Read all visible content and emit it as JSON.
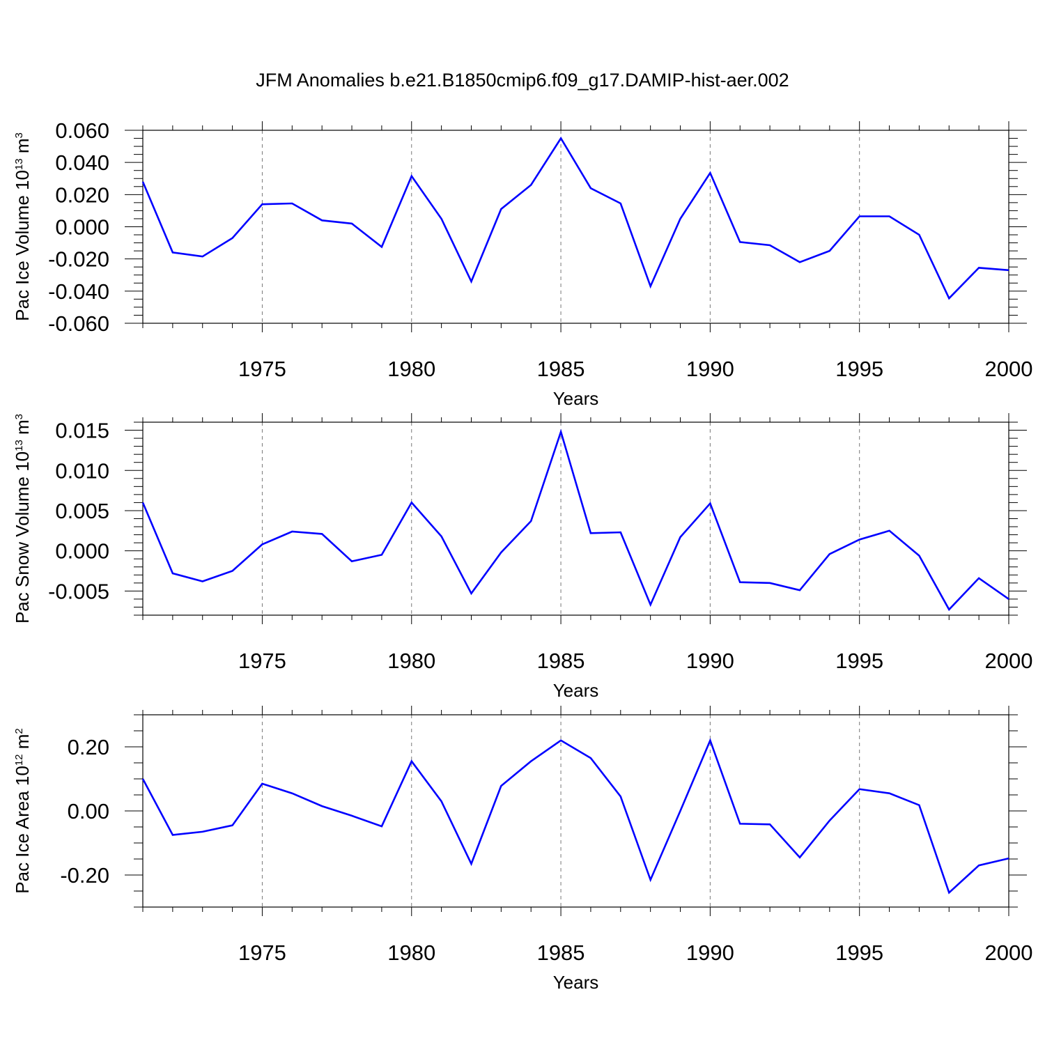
{
  "figure": {
    "title": "JFM Anomalies b.e21.B1850cmip6.f09_g17.DAMIP-hist-aer.002"
  },
  "chart_data": [
    {
      "type": "line",
      "xlabel": "Years",
      "ylabel": {
        "text": "Pac Ice Volume 10",
        "exp1": "13",
        "mid": " m",
        "exp2": "3"
      },
      "xlim": [
        1971,
        2000
      ],
      "ylim": [
        -0.06,
        0.06
      ],
      "xticks": [
        1975,
        1980,
        1985,
        1990,
        1995,
        2000
      ],
      "yticks": [
        -0.06,
        -0.04,
        -0.02,
        0.0,
        0.02,
        0.04,
        0.06
      ],
      "ytick_labels": [
        "-0.060",
        "-0.040",
        "-0.020",
        "0.000",
        "0.020",
        "0.040",
        "0.060"
      ],
      "yminor_step": 0.005,
      "grid": "vertical dashed at major x ticks",
      "line_color": "#0000ff",
      "series": [
        {
          "x": [
            1971,
            1972,
            1973,
            1974,
            1975,
            1976,
            1977,
            1978,
            1979,
            1980,
            1981,
            1982,
            1983,
            1984,
            1985,
            1986,
            1987,
            1988,
            1989,
            1990,
            1991,
            1992,
            1993,
            1994,
            1995,
            1996,
            1997,
            1998,
            1999,
            2000
          ],
          "values": [
            0.028,
            -0.016,
            -0.0185,
            -0.007,
            0.014,
            0.0145,
            0.004,
            0.002,
            -0.0125,
            0.0315,
            0.005,
            -0.034,
            0.011,
            0.026,
            0.055,
            0.024,
            0.0145,
            -0.037,
            0.005,
            0.0335,
            -0.0095,
            -0.0115,
            -0.022,
            -0.015,
            0.0065,
            0.0065,
            -0.005,
            -0.0445,
            -0.0255,
            -0.027
          ]
        }
      ]
    },
    {
      "type": "line",
      "xlabel": "Years",
      "ylabel": {
        "text": "Pac Snow Volume 10",
        "exp1": "13",
        "mid": " m",
        "exp2": "3"
      },
      "xlim": [
        1971,
        2000
      ],
      "ylim": [
        -0.008,
        0.016
      ],
      "xticks": [
        1975,
        1980,
        1985,
        1990,
        1995,
        2000
      ],
      "yticks": [
        -0.005,
        0.0,
        0.005,
        0.01,
        0.015
      ],
      "ytick_labels": [
        "-0.005",
        "0.000",
        "0.005",
        "0.010",
        "0.015"
      ],
      "yminor_step": 0.001,
      "grid": "vertical dashed at major x ticks",
      "line_color": "#0000ff",
      "series": [
        {
          "x": [
            1971,
            1972,
            1973,
            1974,
            1975,
            1976,
            1977,
            1978,
            1979,
            1980,
            1981,
            1982,
            1983,
            1984,
            1985,
            1986,
            1987,
            1988,
            1989,
            1990,
            1991,
            1992,
            1993,
            1994,
            1995,
            1996,
            1997,
            1998,
            1999,
            2000
          ],
          "values": [
            0.006,
            -0.0028,
            -0.0038,
            -0.0025,
            0.0008,
            0.0024,
            0.0021,
            -0.0013,
            -0.0005,
            0.006,
            0.0018,
            -0.0053,
            -0.0002,
            0.0037,
            0.0148,
            0.0022,
            0.0023,
            -0.0067,
            0.0017,
            0.0059,
            -0.0039,
            -0.004,
            -0.0049,
            -0.0004,
            0.0014,
            0.0025,
            -0.0006,
            -0.0073,
            -0.0034,
            -0.006
          ]
        }
      ]
    },
    {
      "type": "line",
      "xlabel": "Years",
      "ylabel": {
        "text": "Pac Ice Area 10",
        "exp1": "12",
        "mid": " m",
        "exp2": "2"
      },
      "xlim": [
        1971,
        2000
      ],
      "ylim": [
        -0.3,
        0.3
      ],
      "xticks": [
        1975,
        1980,
        1985,
        1990,
        1995,
        2000
      ],
      "yticks": [
        -0.2,
        0.0,
        0.2
      ],
      "ytick_labels": [
        "-0.20",
        "0.00",
        "0.20"
      ],
      "yminor_step": 0.05,
      "grid": "vertical dashed at major x ticks",
      "line_color": "#0000ff",
      "series": [
        {
          "x": [
            1971,
            1972,
            1973,
            1974,
            1975,
            1976,
            1977,
            1978,
            1979,
            1980,
            1981,
            1982,
            1983,
            1984,
            1985,
            1986,
            1987,
            1988,
            1989,
            1990,
            1991,
            1992,
            1993,
            1994,
            1995,
            1996,
            1997,
            1998,
            1999,
            2000
          ],
          "values": [
            0.1,
            -0.075,
            -0.065,
            -0.045,
            0.085,
            0.055,
            0.015,
            -0.015,
            -0.048,
            0.155,
            0.03,
            -0.165,
            0.078,
            0.155,
            0.22,
            0.165,
            0.045,
            -0.215,
            0.0,
            0.22,
            -0.04,
            -0.042,
            -0.145,
            -0.03,
            0.068,
            0.055,
            0.018,
            -0.255,
            -0.17,
            -0.148
          ]
        }
      ]
    }
  ]
}
